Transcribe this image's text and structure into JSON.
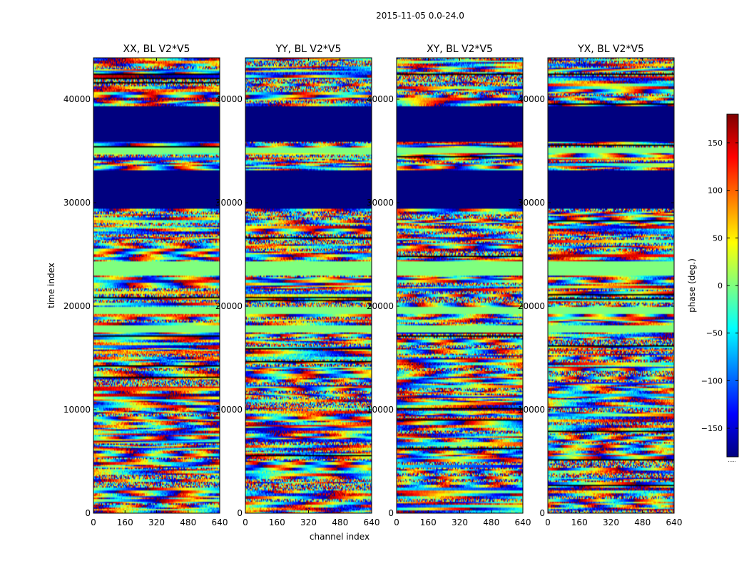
{
  "chart_data": {
    "type": "heatmap",
    "title": "2015-11-05 0.0-24.0",
    "xlabel": "channel index",
    "ylabel": "time index",
    "xlim": [
      0,
      640
    ],
    "ylim": [
      0,
      44000
    ],
    "x_ticks": [
      "0",
      "160",
      "320",
      "480",
      "640"
    ],
    "y_ticks": [
      "0",
      "10000",
      "20000",
      "30000",
      "40000"
    ],
    "x_tick_values": [
      0,
      160,
      320,
      480,
      640
    ],
    "y_tick_values": [
      0,
      10000,
      20000,
      30000,
      40000
    ],
    "panels": [
      {
        "title": "XX, BL V2*V5",
        "seed": 11
      },
      {
        "title": "YY, BL V2*V5",
        "seed": 23
      },
      {
        "title": "XY, BL V2*V5",
        "seed": 37
      },
      {
        "title": "YX, BL V2*V5",
        "seed": 53
      }
    ],
    "colorbar": {
      "label": "phase (deg.)",
      "range": [
        -180,
        180
      ],
      "ticks": [
        "150",
        "100",
        "50",
        "0",
        "−50",
        "−100",
        "−150"
      ],
      "tick_values": [
        150,
        100,
        50,
        0,
        -50,
        -100,
        -150
      ],
      "colormap": [
        "#00007f",
        "#0000ff",
        "#007fff",
        "#00ffff",
        "#7fff7f",
        "#ffff00",
        "#ff7f00",
        "#ff0000",
        "#7f0000"
      ],
      "footer": "....."
    },
    "flagged_bands": [
      {
        "from": 39300,
        "to": 35900,
        "value": -180
      },
      {
        "from": 33100,
        "to": 29400,
        "value": -180
      }
    ],
    "constant_bands": [
      {
        "from": 38200,
        "to": 37900,
        "value": 180
      },
      {
        "from": 35300,
        "to": 34800,
        "value": 0
      },
      {
        "from": 24300,
        "to": 22900,
        "value": 0
      },
      {
        "from": 20000,
        "to": 19300,
        "value": 0
      },
      {
        "from": 18100,
        "to": 17400,
        "value": 0
      }
    ]
  }
}
